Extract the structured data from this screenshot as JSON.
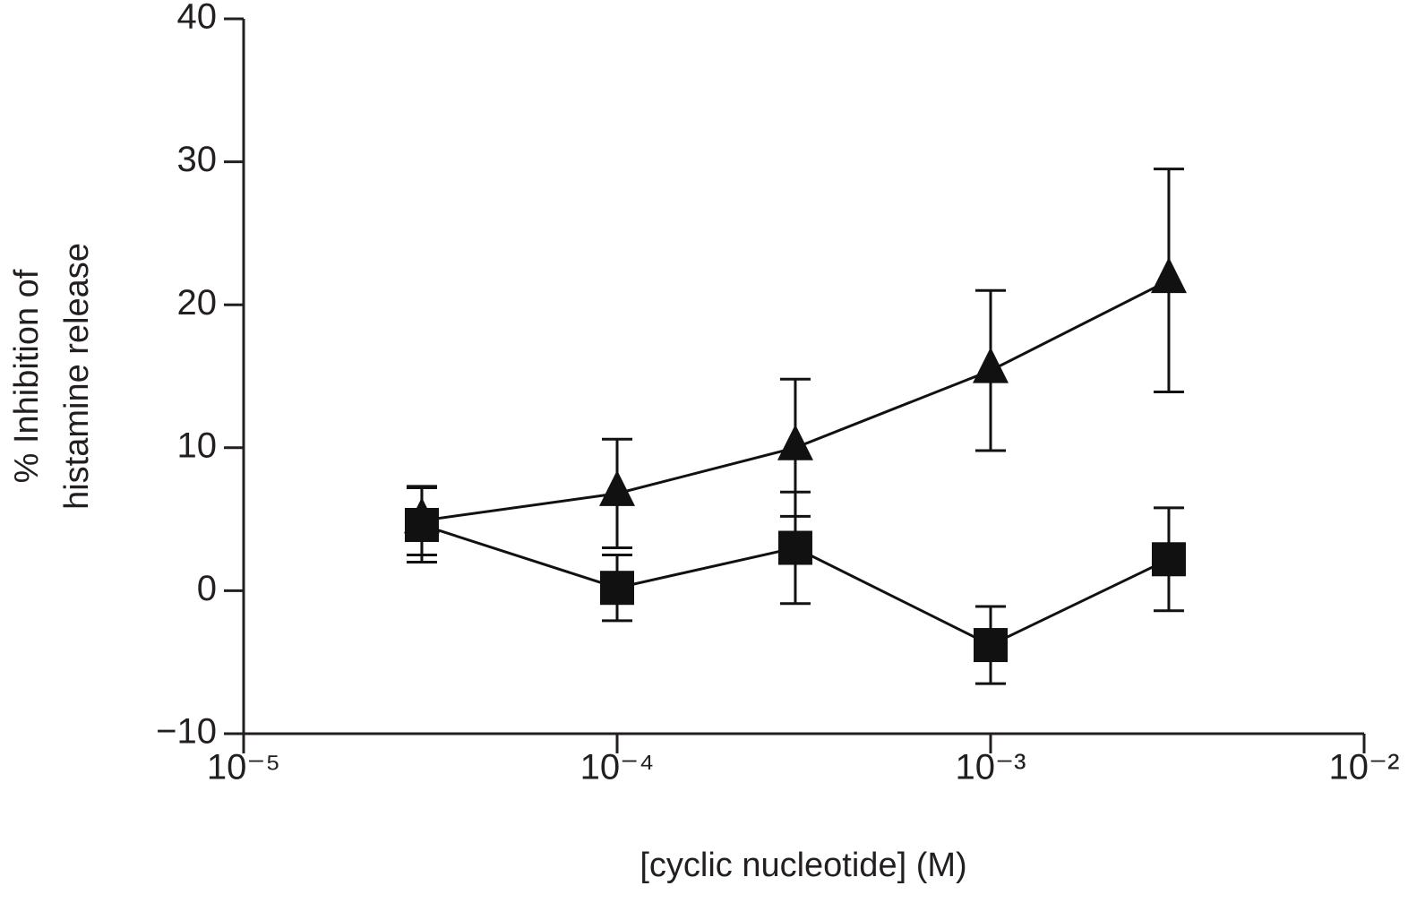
{
  "chart_data": {
    "type": "line",
    "x_label": "[cyclic nucleotide] (M)",
    "y_label": [
      "% Inhibition of",
      "histamine release"
    ],
    "x_scale": "log",
    "xlim": [
      1e-05,
      0.01
    ],
    "xticks": [
      {
        "value": 1e-05,
        "label": "10⁻⁵"
      },
      {
        "value": 0.0001,
        "label": "10⁻⁴"
      },
      {
        "value": 0.001,
        "label": "10⁻³"
      },
      {
        "value": 0.01,
        "label": "10⁻²"
      }
    ],
    "ylim": [
      -10,
      40
    ],
    "yticks": [
      {
        "value": -10,
        "label": "−10"
      },
      0,
      10,
      20,
      30,
      40
    ],
    "x": [
      3e-05,
      0.0001,
      0.0003,
      0.001,
      0.003
    ],
    "series": [
      {
        "marker": "triangle",
        "color": "#111111",
        "values": [
          4.9,
          6.8,
          10.0,
          15.4,
          21.7
        ],
        "errors": [
          2.4,
          3.8,
          4.8,
          5.6,
          7.8
        ]
      },
      {
        "marker": "square",
        "color": "#111111",
        "values": [
          4.6,
          0.2,
          3.0,
          -3.8,
          2.2
        ],
        "errors": [
          2.6,
          2.3,
          3.9,
          2.7,
          3.6
        ]
      }
    ]
  }
}
